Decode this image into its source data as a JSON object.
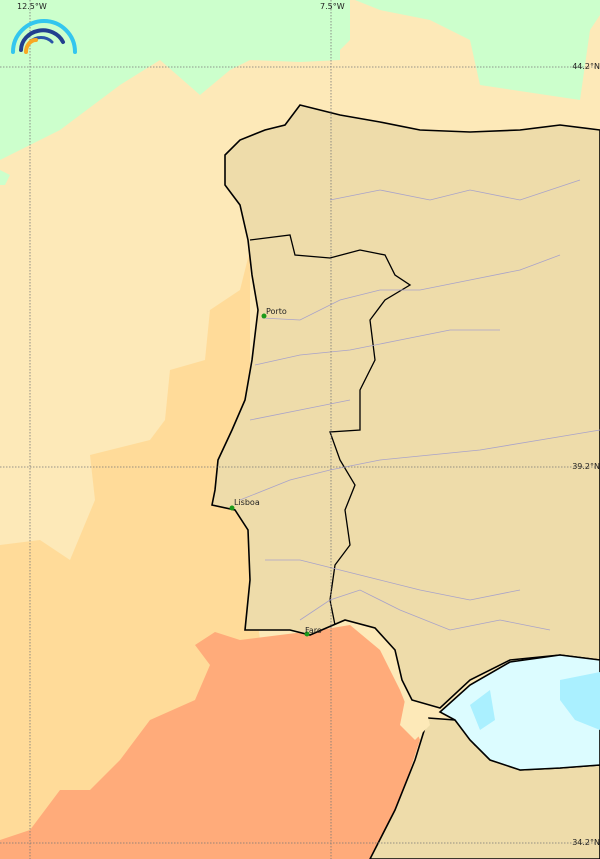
{
  "map": {
    "longitude_labels": [
      "12.5°W",
      "7.5°W"
    ],
    "latitude_labels": [
      "44.2°N",
      "39.2°N",
      "34.2°N"
    ],
    "cities": [
      {
        "name": "Porto"
      },
      {
        "name": "Lisboa"
      },
      {
        "name": "Faro"
      }
    ],
    "colors": {
      "land": "#eedcaa",
      "band_green": "#ccffcc",
      "band_light_yellow": "#fde9b8",
      "band_orange": "#ffdb99",
      "band_salmon": "#ffab7a",
      "sea_cyan_light": "#dcfcff",
      "sea_cyan": "#aaf0ff",
      "coastline": "#000000",
      "rivers": "#a9a3c9",
      "city_marker": "#1a9a1a"
    },
    "logo": {
      "icon": "rainbow-arc-logo"
    }
  }
}
